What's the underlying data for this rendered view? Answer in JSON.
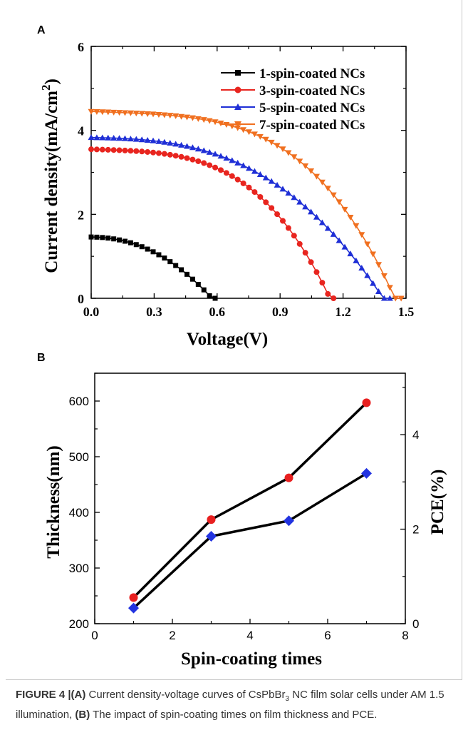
{
  "panels": {
    "a_label": "A",
    "b_label": "B"
  },
  "caption": {
    "figure_label": "FIGURE 4 |",
    "part_a_label": "(A)",
    "part_a_text_1": " Current density-voltage curves of CsPbBr",
    "part_a_sub": "3",
    "part_a_text_2": " NC film solar cells under AM 1.5 illumination, ",
    "part_b_label": "(B)",
    "part_b_text": " The impact of spin-coating times on film thickness and PCE."
  },
  "colors": {
    "black": "#000000",
    "red": "#e8251f",
    "blue": "#1f2fd6",
    "orange": "#f07020",
    "thickness_marker": "#e82020",
    "pce_marker": "#2233e0"
  },
  "chart_data": [
    {
      "type": "line",
      "xlabel": "Voltage(V)",
      "ylabel": "Current density(mA/cm",
      "ylabel_sup": "2",
      "ylabel_close": ")",
      "xlim": [
        0.0,
        1.5
      ],
      "ylim": [
        0,
        6
      ],
      "xticks": [
        "0.0",
        "0.3",
        "0.6",
        "0.9",
        "1.2",
        "1.5"
      ],
      "yticks": [
        "0",
        "2",
        "4",
        "6"
      ],
      "legend_position": "top-right",
      "series": [
        {
          "name": "1-spin-coated NCs",
          "marker": "square",
          "color": "#000000",
          "voc": 0.585,
          "jsc": 1.46,
          "exp": 2.2,
          "bow": 0.25
        },
        {
          "name": "3-spin-coated NCs",
          "marker": "circle",
          "color": "#e8251f",
          "voc": 1.155,
          "jsc": 3.55,
          "exp": 3.5,
          "bow": 0.35
        },
        {
          "name": "5-spin-coated NCs",
          "marker": "triangle-up",
          "color": "#1f2fd6",
          "voc": 1.41,
          "jsc": 3.83,
          "exp": 2.8,
          "bow": 0.25
        },
        {
          "name": "7-spin-coated NCs",
          "marker": "triangle-down",
          "color": "#f07020",
          "voc": 1.47,
          "jsc": 4.45,
          "exp": 3.8,
          "bow": 0.4
        }
      ]
    },
    {
      "type": "line",
      "xlabel": "Spin-coating times",
      "ylabel_left": "Thickness(nm)",
      "ylabel_right": "PCE(%)",
      "xlim": [
        0,
        8
      ],
      "ylim_left": [
        200,
        650
      ],
      "ylim_right": [
        0,
        5.3
      ],
      "xticks": [
        "0",
        "2",
        "4",
        "6",
        "8"
      ],
      "yticks_left": [
        "200",
        "300",
        "400",
        "500",
        "600"
      ],
      "yticks_right": [
        "0",
        "2",
        "4"
      ],
      "x": [
        1,
        3,
        5,
        7
      ],
      "series": [
        {
          "name": "",
          "axis": "left",
          "marker": "circle",
          "color": "#e82020",
          "values": [
            247,
            387,
            462,
            597
          ]
        },
        {
          "name": "",
          "axis": "left",
          "marker": "diamond",
          "color": "#2233e0",
          "values": [
            228,
            357,
            385,
            470
          ]
        }
      ]
    }
  ]
}
